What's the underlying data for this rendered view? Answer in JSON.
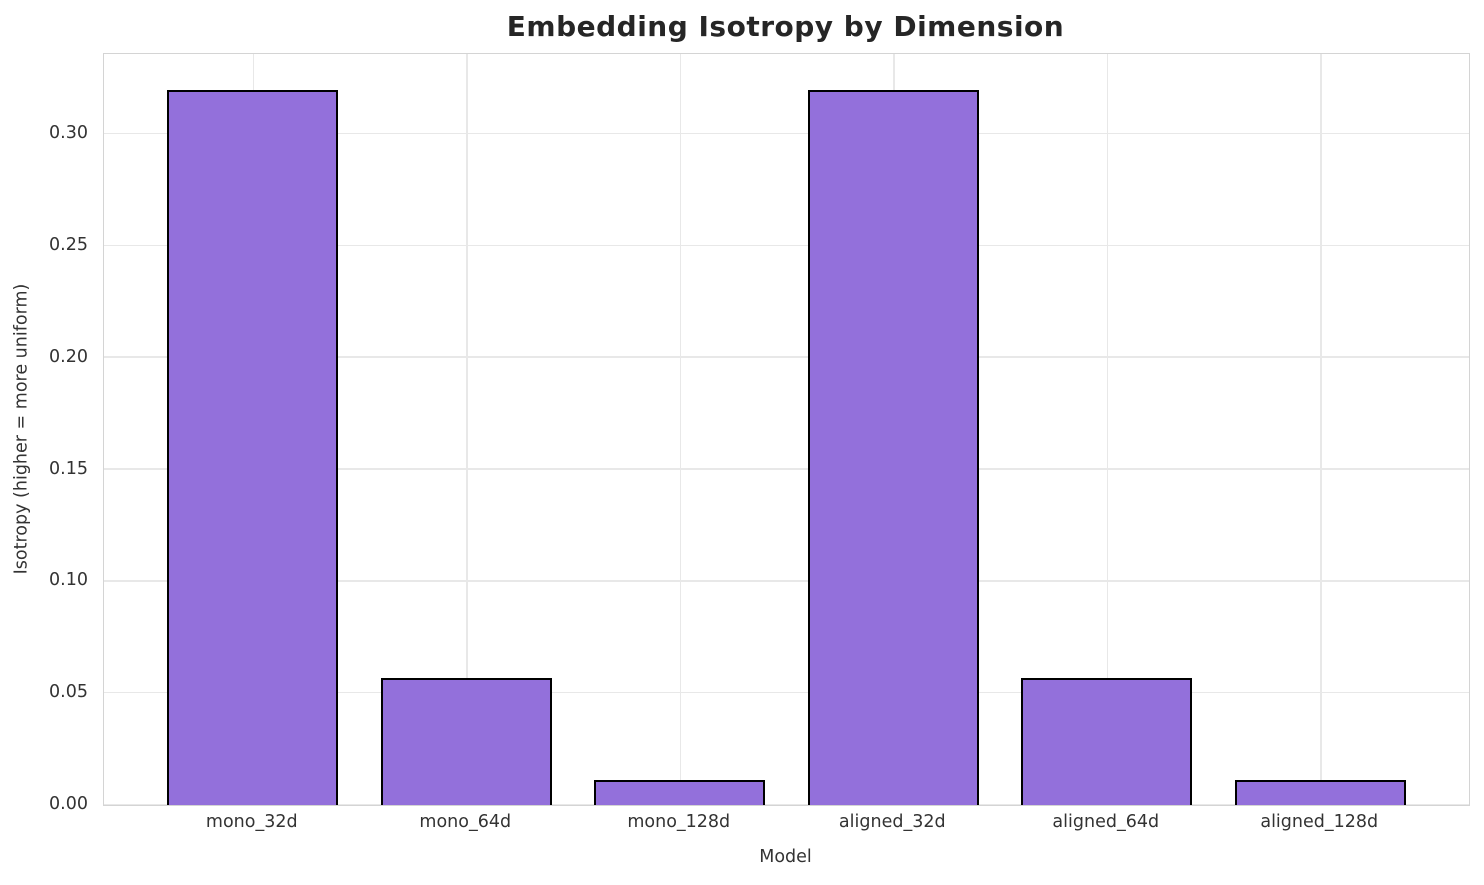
{
  "title": "Embedding Isotropy by Dimension",
  "chart_data": {
    "type": "bar",
    "title": "Embedding Isotropy by Dimension",
    "xlabel": "Model",
    "ylabel": "Isotropy (higher = more uniform)",
    "categories": [
      "mono_32d",
      "mono_64d",
      "mono_128d",
      "aligned_32d",
      "aligned_64d",
      "aligned_128d"
    ],
    "values": [
      0.32,
      0.057,
      0.011,
      0.32,
      0.057,
      0.011
    ],
    "ylim": [
      0,
      0.336
    ],
    "yticks": [
      0.0,
      0.05,
      0.1,
      0.15,
      0.2,
      0.25,
      0.3
    ],
    "ytick_labels": [
      "0.00",
      "0.05",
      "0.10",
      "0.15",
      "0.20",
      "0.25",
      "0.30"
    ],
    "grid": true,
    "legend": "none",
    "colors": {
      "bar_fill": "#9370DB",
      "bar_edge": "#000000",
      "grid_line": "#e8e8e8",
      "spine": "#d4d4d4",
      "title_text": "#262626",
      "axis_text": "#333333",
      "background": "#ffffff"
    }
  }
}
